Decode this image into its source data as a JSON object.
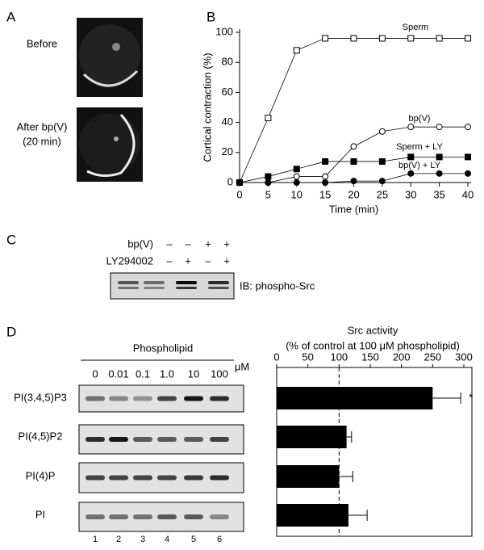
{
  "panels": [
    "A",
    "B",
    "C",
    "D"
  ],
  "panel_a": {
    "labels": [
      "Before",
      "After bp(V)",
      "(20 min)"
    ]
  },
  "panel_c": {
    "rows": [
      {
        "label": "bp(V)",
        "marks": [
          "–",
          "–",
          "+",
          "+"
        ]
      },
      {
        "label": "LY294002",
        "marks": [
          "–",
          "+",
          "–",
          "+"
        ]
      }
    ],
    "antibody": "IB: phospho-Src"
  },
  "panel_d": {
    "header": "Phospholipid",
    "unit": "μM",
    "concentrations": [
      "0",
      "0.01",
      "0.1",
      "1.0",
      "10",
      "100"
    ],
    "lanes": [
      "1",
      "2",
      "3",
      "4",
      "5",
      "6"
    ]
  },
  "chart_data": [
    {
      "type": "line",
      "x_label": "Time (min)",
      "y_label": "Cortical contraction (%)",
      "x": [
        0,
        5,
        10,
        15,
        20,
        25,
        30,
        35,
        40
      ],
      "xlim": [
        0,
        40
      ],
      "xticks": [
        0,
        5,
        10,
        15,
        20,
        25,
        30,
        35,
        40
      ],
      "ylim": [
        0,
        100
      ],
      "yticks": [
        0,
        20,
        40,
        60,
        80,
        100
      ],
      "series": [
        {
          "name": "Sperm",
          "color": "#000000",
          "marker": "square",
          "filled": false,
          "values": [
            0,
            43,
            88,
            96,
            96,
            96,
            96,
            96,
            96
          ]
        },
        {
          "name": "bp(V)",
          "color": "#000000",
          "marker": "circle",
          "filled": false,
          "values": [
            0,
            0,
            4,
            4,
            24,
            34,
            37,
            37,
            37
          ]
        },
        {
          "name": "Sperm + LY",
          "color": "#000000",
          "marker": "square",
          "filled": true,
          "values": [
            0,
            4,
            9,
            14,
            14,
            14,
            17,
            17,
            17
          ]
        },
        {
          "name": "bp(V) + LY",
          "color": "#000000",
          "marker": "circle",
          "filled": true,
          "values": [
            0,
            0,
            0,
            0,
            1,
            1,
            6,
            6,
            6
          ]
        }
      ]
    },
    {
      "type": "hbar",
      "title": "Src activity",
      "subtitle": "(% of control at 100 μM phospholipid)",
      "categories": [
        "PI(3,4,5)P3",
        "PI(4,5)P2",
        "PI(4)P",
        "PI"
      ],
      "values": [
        250,
        112,
        100,
        115
      ],
      "errors": [
        45,
        8,
        22,
        30
      ],
      "color": "#000000",
      "xlim": [
        0,
        300
      ],
      "xticks": [
        0,
        50,
        100,
        150,
        200,
        250,
        300
      ],
      "reference_line": 100,
      "annotation": "*"
    }
  ]
}
